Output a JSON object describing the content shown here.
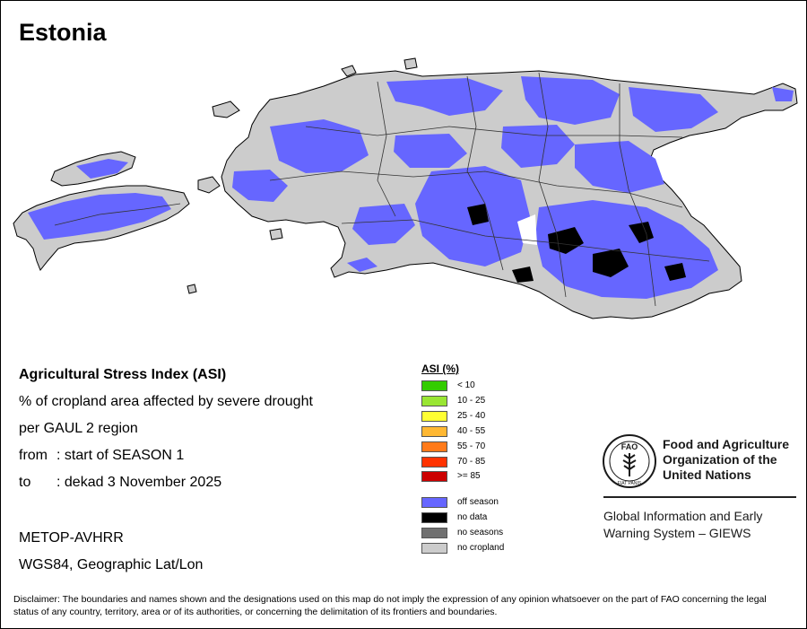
{
  "map": {
    "title": "Estonia"
  },
  "info": {
    "title": "Agricultural Stress Index (ASI)",
    "description_line1": "% of cropland area affected by severe drought",
    "description_line2": "per GAUL 2 region",
    "from_label": "from",
    "from_value": ": start of SEASON 1",
    "to_label": "to",
    "to_value": ": dekad 3 November 2025",
    "sensor": "METOP-AVHRR",
    "projection": "WGS84, Geographic Lat/Lon"
  },
  "legend": {
    "title": "ASI (%)",
    "classes": [
      {
        "label": "< 10",
        "color": "#33cc00"
      },
      {
        "label": "10 - 25",
        "color": "#99e633"
      },
      {
        "label": "25 - 40",
        "color": "#ffff33"
      },
      {
        "label": "40 - 55",
        "color": "#ffb833"
      },
      {
        "label": "55 - 70",
        "color": "#ff7a1a"
      },
      {
        "label": "70 - 85",
        "color": "#ff3300"
      },
      {
        "label": ">= 85",
        "color": "#cc0000"
      }
    ],
    "other": [
      {
        "label": "off season",
        "color": "#6666ff"
      },
      {
        "label": "no data",
        "color": "#000000"
      },
      {
        "label": "no seasons",
        "color": "#707070"
      },
      {
        "label": "no cropland",
        "color": "#cccccc"
      }
    ]
  },
  "org": {
    "fao_line1": "Food and Agriculture",
    "fao_line2": "Organization of the",
    "fao_line3": "United Nations",
    "logo_text": "FAO",
    "logo_motto": "FIAT PANIS",
    "giews_line1": "Global Information and Early",
    "giews_line2": "Warning System – GIEWS"
  },
  "disclaimer": "Disclaimer: The boundaries and names shown and the designations used on this map do not imply the expression of any opinion whatsoever on the part of FAO concerning the legal status of any country, territory, area or of its authorities, or concerning the delimitation of its frontiers and boundaries.",
  "colors": {
    "off_season": "#6666ff",
    "no_cropland": "#cccccc",
    "no_data": "#000000"
  }
}
